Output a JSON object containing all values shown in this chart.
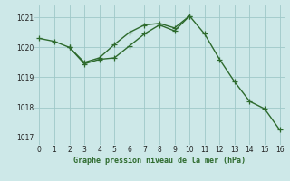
{
  "line1_x": [
    0,
    1,
    2,
    3,
    4,
    5,
    6,
    7,
    8,
    9,
    10
  ],
  "line1_y": [
    1020.3,
    1020.2,
    1020.0,
    1019.5,
    1019.65,
    1020.1,
    1020.5,
    1020.75,
    1020.8,
    1020.65,
    1021.05
  ],
  "line2_x": [
    2,
    3,
    4,
    5,
    6,
    7,
    8,
    9,
    10,
    11,
    12,
    13,
    14,
    15,
    16
  ],
  "line2_y": [
    1020.0,
    1019.45,
    1019.6,
    1019.65,
    1020.05,
    1020.45,
    1020.75,
    1020.55,
    1021.05,
    1020.45,
    1019.6,
    1018.85,
    1018.2,
    1017.95,
    1017.25
  ],
  "line_color": "#2d6a2d",
  "bg_color": "#cde8e8",
  "grid_color": "#9fc8c8",
  "xlabel": "Graphe pression niveau de la mer (hPa)",
  "xlim": [
    -0.3,
    16.3
  ],
  "ylim": [
    1016.75,
    1021.4
  ],
  "yticks": [
    1017,
    1018,
    1019,
    1020,
    1021
  ],
  "xticks": [
    0,
    1,
    2,
    3,
    4,
    5,
    6,
    7,
    8,
    9,
    10,
    11,
    12,
    13,
    14,
    15,
    16
  ],
  "marker": "+",
  "markersize": 4,
  "linewidth": 1.0
}
